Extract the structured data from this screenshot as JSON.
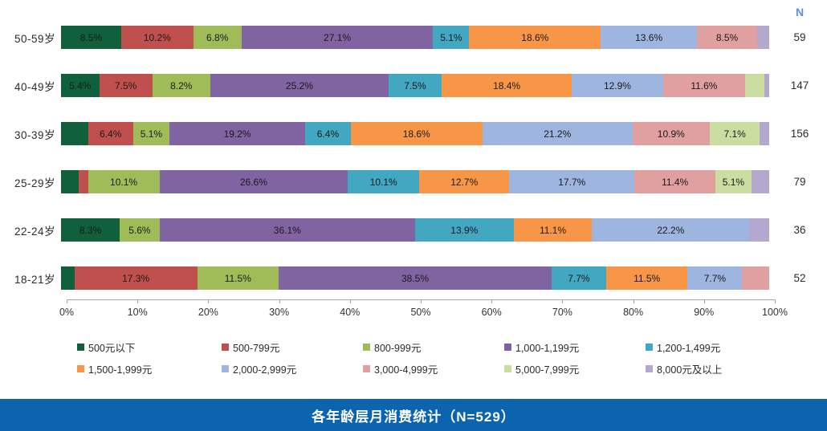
{
  "header": {
    "n_label": "N"
  },
  "footer": {
    "title": "各年龄层月消费统计（N=529）"
  },
  "colors": {
    "footer_bar": "#0c64ae",
    "n_header_text": "#5b8de4",
    "axis_line": "#a6a6a6"
  },
  "chart_data": {
    "type": "bar",
    "stacked": true,
    "orientation": "horizontal",
    "title": "各年龄层月消费统计（N=529）",
    "xlabel": "",
    "ylabel": "",
    "xlim": [
      0,
      100
    ],
    "grid": false,
    "legend_position": "bottom",
    "label_threshold": 5,
    "x_ticks": [
      "0%",
      "10%",
      "20%",
      "30%",
      "40%",
      "50%",
      "60%",
      "70%",
      "80%",
      "90%",
      "100%"
    ],
    "categories": [
      "50-59岁",
      "40-49岁",
      "30-39岁",
      "25-29岁",
      "22-24岁",
      "18-21岁"
    ],
    "n_column_header": "N",
    "n_values": [
      59,
      147,
      156,
      79,
      36,
      52
    ],
    "series": [
      {
        "name": "500元以下",
        "color": "#10603b",
        "values": [
          8.5,
          5.4,
          3.8,
          2.5,
          8.3,
          1.9
        ]
      },
      {
        "name": "500-799元",
        "color": "#c0504d",
        "values": [
          10.2,
          7.5,
          6.4,
          1.3,
          0,
          17.3
        ]
      },
      {
        "name": "800-999元",
        "color": "#9fbc59",
        "values": [
          6.8,
          8.2,
          5.1,
          10.1,
          5.6,
          11.5
        ]
      },
      {
        "name": "1,000-1,199元",
        "color": "#8064a2",
        "values": [
          27.1,
          25.2,
          19.2,
          26.6,
          36.1,
          38.5
        ]
      },
      {
        "name": "1,200-1,499元",
        "color": "#42a7c1",
        "values": [
          5.1,
          7.5,
          6.4,
          10.1,
          13.9,
          7.7
        ]
      },
      {
        "name": "1,500-1,999元",
        "color": "#f79646",
        "values": [
          18.6,
          18.4,
          18.6,
          12.7,
          11.1,
          11.5
        ]
      },
      {
        "name": "2,000-2,999元",
        "color": "#9eb6df",
        "values": [
          13.6,
          12.9,
          21.2,
          17.7,
          22.2,
          7.7
        ]
      },
      {
        "name": "3,000-4,999元",
        "color": "#e0a0a0",
        "values": [
          8.5,
          11.6,
          10.9,
          11.4,
          0,
          3.8
        ]
      },
      {
        "name": "5,000-7,999元",
        "color": "#cbdea2",
        "values": [
          0,
          2.7,
          7.1,
          5.1,
          0,
          0
        ]
      },
      {
        "name": "8,000元及以上",
        "color": "#b5a8ce",
        "values": [
          1.7,
          0.7,
          1.3,
          2.5,
          2.8,
          0
        ]
      }
    ]
  }
}
